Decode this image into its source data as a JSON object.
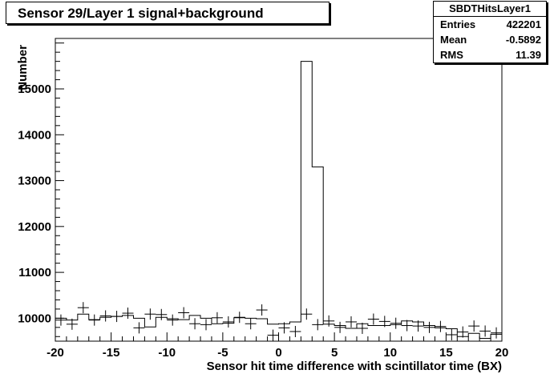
{
  "chart_data": {
    "type": "histogram",
    "title": "Sensor 29/Layer 1 signal+background",
    "xlabel": "Sensor hit time difference with scintillator time (BX)",
    "ylabel": "Number",
    "xlim": [
      -20,
      20
    ],
    "ylim": [
      9500,
      16100
    ],
    "xticks": [
      "-20",
      "-15",
      "-10",
      "-5",
      "0",
      "5",
      "10",
      "15",
      "20"
    ],
    "yticks": [
      "10000",
      "11000",
      "12000",
      "13000",
      "14000",
      "15000"
    ],
    "bin_edges_start": -20,
    "bin_width": 1,
    "histogram_values": [
      10000,
      9960,
      10090,
      9970,
      10020,
      10040,
      10060,
      10000,
      9810,
      10020,
      9990,
      9970,
      10060,
      10000,
      9880,
      9890,
      10010,
      10000,
      9990,
      9870,
      9880,
      9920,
      15600,
      13300,
      9870,
      9840,
      9780,
      9880,
      9840,
      9840,
      9860,
      9940,
      9920,
      9840,
      9790,
      9770,
      9600,
      9670,
      9560,
      9650
    ],
    "marker_points_x": [
      -19.5,
      -18.5,
      -17.5,
      -16.5,
      -15.5,
      -14.5,
      -13.5,
      -12.5,
      -11.5,
      -10.5,
      -9.5,
      -8.5,
      -7.5,
      -6.5,
      -5.5,
      -4.5,
      -3.5,
      -2.5,
      -1.5,
      -0.5,
      0.5,
      1.5,
      2.5,
      3.5,
      4.5,
      5.5,
      6.5,
      7.5,
      8.5,
      9.5,
      10.5,
      11.5,
      12.5,
      13.5,
      14.5,
      15.5,
      16.5,
      17.5,
      18.5,
      19.5
    ],
    "marker_points_y": [
      9960,
      9870,
      10230,
      9960,
      10050,
      10040,
      10110,
      9790,
      10090,
      10080,
      9960,
      10120,
      9880,
      9860,
      10010,
      9920,
      10020,
      9880,
      10180,
      9630,
      9790,
      9710,
      10090,
      9860,
      9940,
      9800,
      9920,
      9780,
      9980,
      9930,
      9890,
      9840,
      9830,
      9800,
      9820,
      9640,
      9700,
      9830,
      9720,
      9680
    ],
    "grid": false,
    "stats": {
      "name": "SBDTHitsLayer1",
      "entries_label": "Entries",
      "entries": "422201",
      "mean_label": "Mean",
      "mean": "-0.5892",
      "rms_label": "RMS",
      "rms": "11.39"
    }
  }
}
